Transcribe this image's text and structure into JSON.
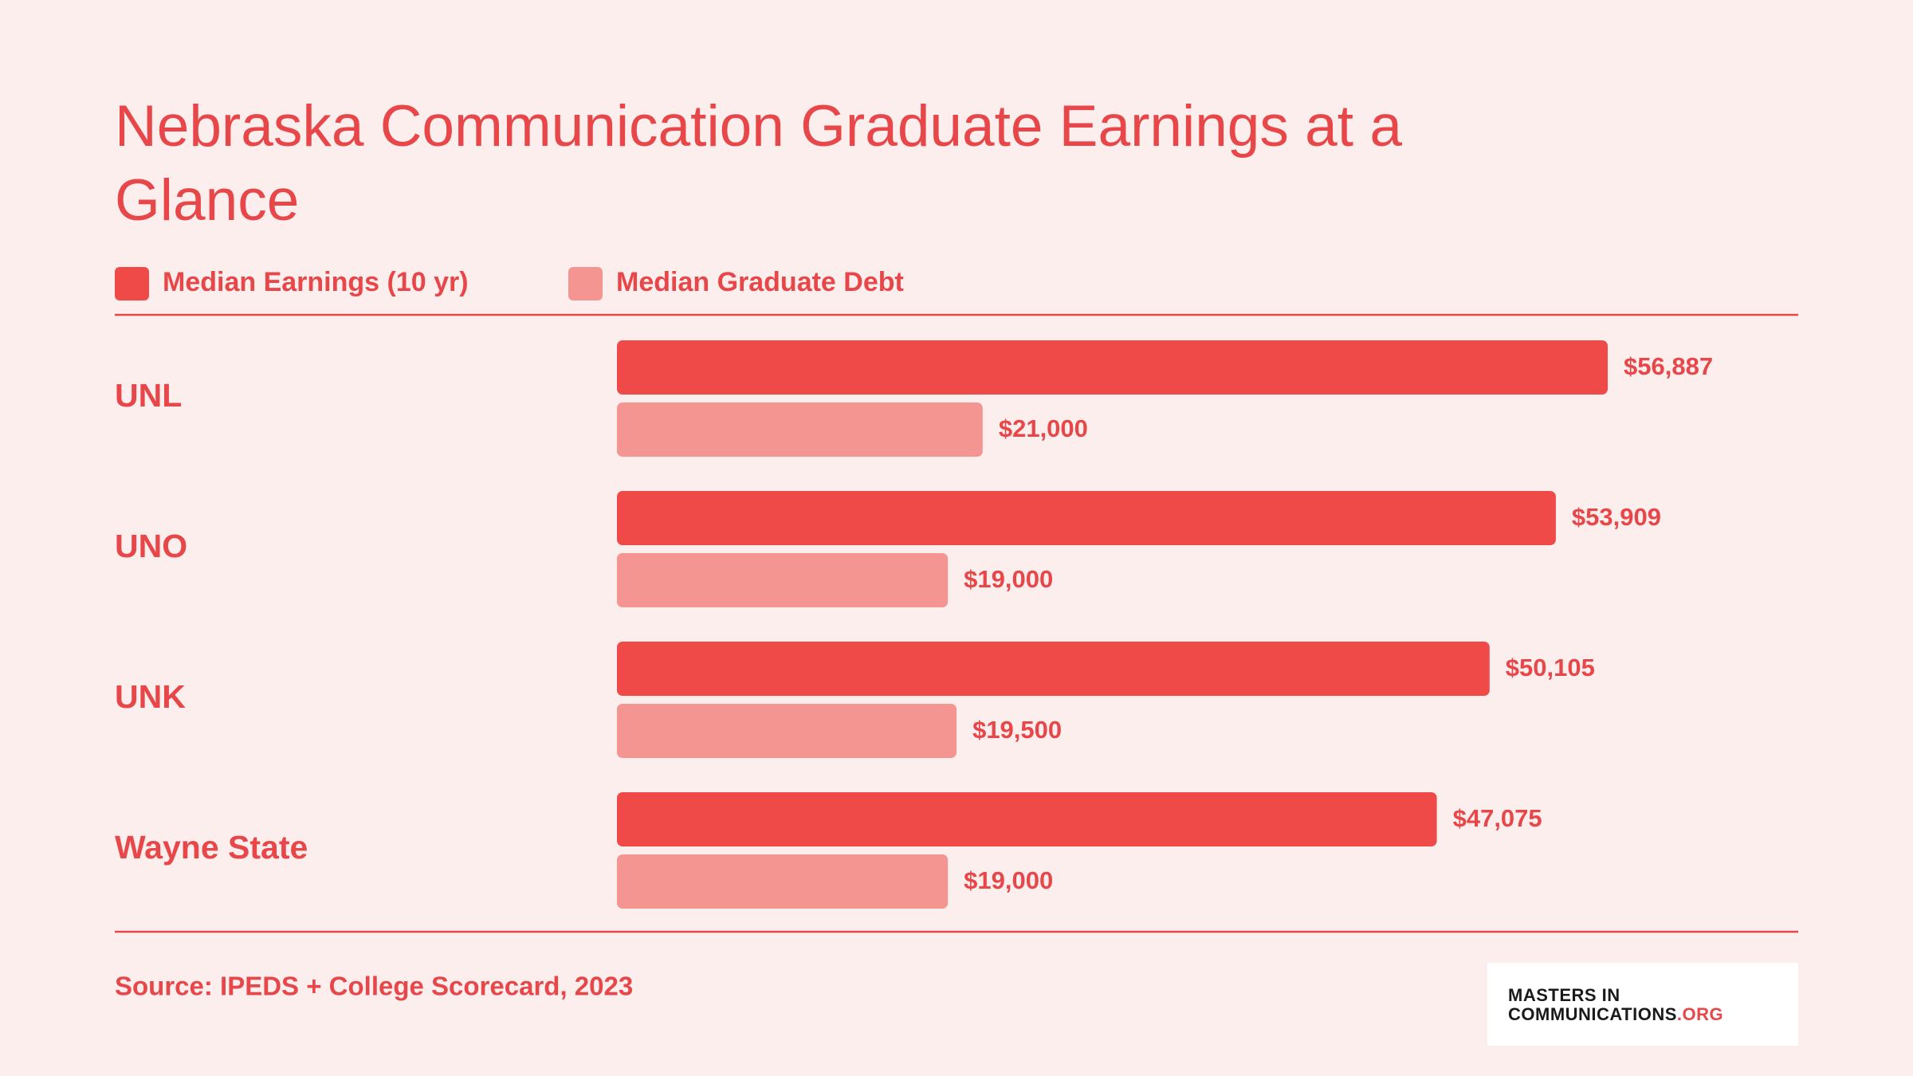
{
  "chart_data": {
    "type": "bar",
    "orientation": "horizontal",
    "title": "Nebraska Communication Graduate Earnings at a Glance",
    "categories": [
      "UNL",
      "UNO",
      "UNK",
      "Wayne State"
    ],
    "series": [
      {
        "name": "Median Earnings (10 yr)",
        "color": "#ef4a48",
        "values": [
          56887,
          53909,
          50105,
          47075
        ],
        "value_labels": [
          "$56,887",
          "$53,909",
          "$50,105",
          "$47,075"
        ]
      },
      {
        "name": "Median Graduate Debt",
        "color": "#f59591",
        "values": [
          21000,
          19000,
          19500,
          19000
        ],
        "value_labels": [
          "$21,000",
          "$19,000",
          "$19,500",
          "$19,000"
        ]
      }
    ],
    "source": "Source: IPEDS + College Scorecard, 2023"
  },
  "logo": {
    "line1": "MASTERS IN",
    "line2": "COMMUNICATIONS",
    "suffix": ".ORG"
  }
}
